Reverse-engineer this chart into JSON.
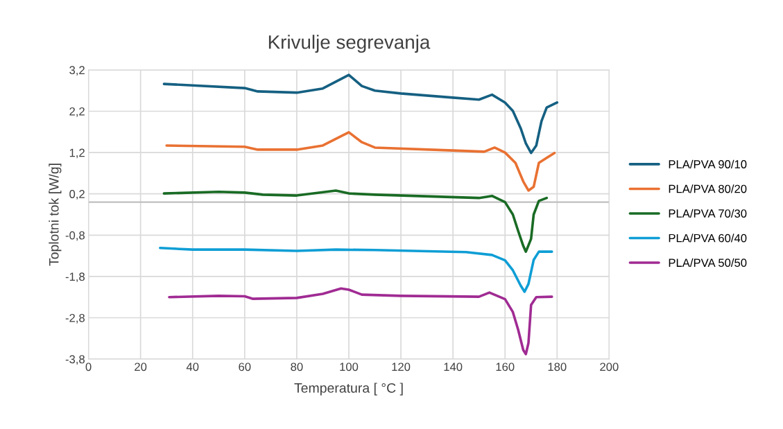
{
  "chart_data": {
    "type": "line",
    "title": "Krivulje segrevanja",
    "xlabel": "Temperatura [ °C ]",
    "ylabel": "Toplotni tok [W/g]",
    "xlim": [
      0,
      200
    ],
    "xticks": [
      0,
      20,
      40,
      60,
      80,
      100,
      120,
      140,
      160,
      180,
      200
    ],
    "ylim": [
      -3.8,
      3.2
    ],
    "yticks": [
      {
        "value": -3.8,
        "label": "-3,8"
      },
      {
        "value": -2.8,
        "label": "-2,8"
      },
      {
        "value": -1.8,
        "label": "-1,8"
      },
      {
        "value": -0.8,
        "label": "-0,8"
      },
      {
        "value": 0.2,
        "label": "0,2"
      },
      {
        "value": 1.2,
        "label": "1,2"
      },
      {
        "value": 2.2,
        "label": "2,2"
      },
      {
        "value": 3.2,
        "label": "3,2"
      }
    ],
    "grid": true,
    "legend": "right",
    "marker": "none",
    "line_style": "solid",
    "ref_lines": [
      {
        "axis": "y",
        "value": 0,
        "color": "#bfbfbf"
      }
    ],
    "series": [
      {
        "name": "PLA/PVA 90/10",
        "color": "#156082",
        "x": [
          29,
          60,
          65,
          80,
          90,
          100,
          105,
          110,
          120,
          140,
          150,
          155,
          160,
          163,
          166,
          168,
          170,
          172,
          174,
          176,
          180
        ],
        "values": [
          2.86,
          2.76,
          2.68,
          2.65,
          2.75,
          3.08,
          2.81,
          2.7,
          2.63,
          2.53,
          2.48,
          2.6,
          2.41,
          2.21,
          1.79,
          1.42,
          1.19,
          1.37,
          1.96,
          2.29,
          2.41
        ]
      },
      {
        "name": "PLA/PVA 80/20",
        "color": "#e97132",
        "x": [
          30,
          60,
          65,
          80,
          90,
          100,
          105,
          110,
          140,
          152,
          156,
          160,
          164,
          167,
          169,
          171,
          173,
          176,
          179
        ],
        "values": [
          1.37,
          1.34,
          1.27,
          1.27,
          1.37,
          1.69,
          1.45,
          1.32,
          1.25,
          1.22,
          1.32,
          1.2,
          0.95,
          0.5,
          0.28,
          0.37,
          0.95,
          1.07,
          1.19
        ]
      },
      {
        "name": "PLA/PVA 70/30",
        "color": "#196b24",
        "x": [
          29,
          50,
          60,
          67,
          80,
          95,
          100,
          110,
          150,
          155,
          160,
          163,
          165,
          167,
          168,
          170,
          171,
          173,
          176
        ],
        "values": [
          0.21,
          0.25,
          0.23,
          0.18,
          0.16,
          0.28,
          0.21,
          0.18,
          0.1,
          0.15,
          0.0,
          -0.3,
          -0.69,
          -1.06,
          -1.2,
          -0.89,
          -0.3,
          0.03,
          0.1
        ]
      },
      {
        "name": "PLA/PVA 60/40",
        "color": "#0f9ed5",
        "x": [
          27.5,
          40,
          60,
          80,
          95,
          110,
          145,
          155,
          160,
          163,
          166,
          167.5,
          169,
          171,
          173,
          178
        ],
        "values": [
          -1.11,
          -1.15,
          -1.15,
          -1.18,
          -1.15,
          -1.16,
          -1.21,
          -1.28,
          -1.41,
          -1.65,
          -2.02,
          -2.17,
          -1.98,
          -1.4,
          -1.2,
          -1.2
        ]
      },
      {
        "name": "PLA/PVA 50/50",
        "color": "#a02b93",
        "x": [
          31,
          50,
          60,
          63,
          80,
          90,
          97,
          100,
          105,
          120,
          150,
          154,
          160,
          163,
          165,
          167,
          168,
          169,
          170,
          172,
          178
        ],
        "values": [
          -2.3,
          -2.27,
          -2.28,
          -2.34,
          -2.32,
          -2.22,
          -2.09,
          -2.12,
          -2.24,
          -2.27,
          -2.29,
          -2.19,
          -2.35,
          -2.66,
          -3.08,
          -3.58,
          -3.68,
          -3.41,
          -2.49,
          -2.3,
          -2.29
        ]
      }
    ]
  }
}
